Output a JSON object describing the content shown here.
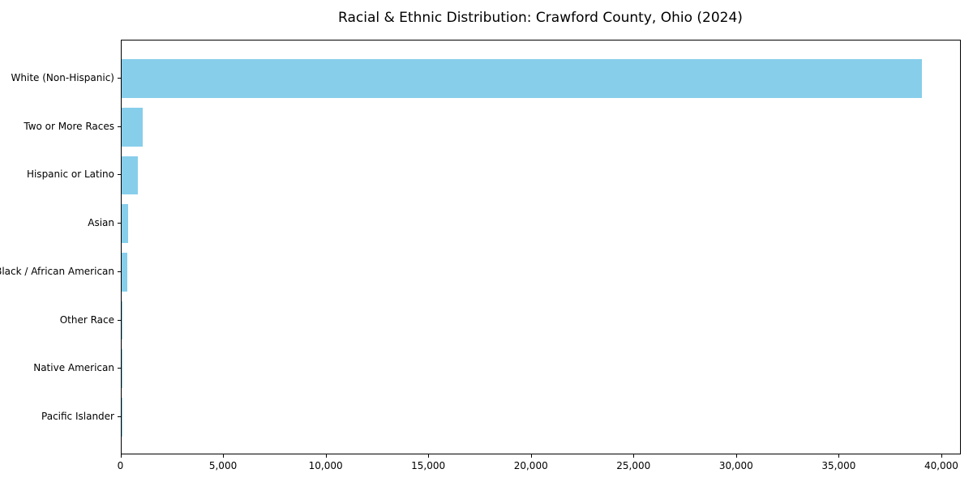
{
  "figure": {
    "title": "Racial & Ethnic Distribution: Crawford County, Ohio (2024)"
  },
  "chart_data": {
    "type": "bar",
    "orientation": "horizontal",
    "title": "Racial & Ethnic Distribution: Crawford County, Ohio (2024)",
    "categories": [
      "White (Non-Hispanic)",
      "Two or More Races",
      "Hispanic or Latino",
      "Asian",
      "Black / African American",
      "Other Race",
      "Native American",
      "Pacific Islander"
    ],
    "values": [
      39000,
      1060,
      800,
      330,
      280,
      40,
      30,
      10
    ],
    "xlabel": "",
    "ylabel": "",
    "xlim": [
      0,
      40950
    ],
    "xticks": [
      0,
      5000,
      10000,
      15000,
      20000,
      25000,
      30000,
      35000,
      40000
    ],
    "xtick_labels": [
      "0",
      "5,000",
      "10,000",
      "15,000",
      "20,000",
      "25,000",
      "30,000",
      "35,000",
      "40,000"
    ],
    "bar_color": "#87CEEB",
    "axis_color": "#000000",
    "grid": false,
    "legend": null
  }
}
